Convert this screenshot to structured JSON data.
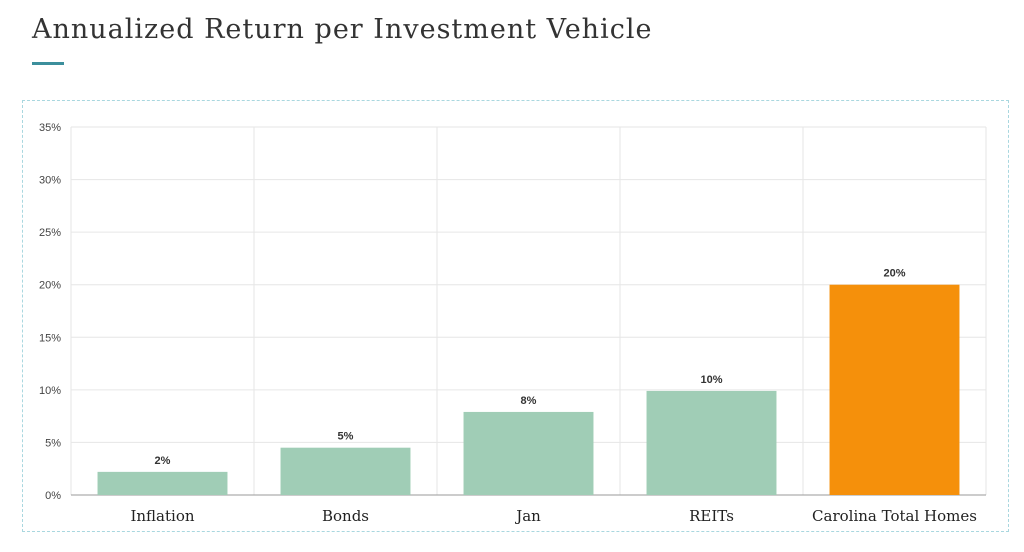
{
  "page": {
    "title": "Annualized Return per Investment Vehicle"
  },
  "colors": {
    "accent": "#3c8f9c",
    "bar_default": "#a0cdb6",
    "bar_highlight": "#f5900b",
    "grid": "#e6e6e6",
    "axis": "#999999"
  },
  "chart_data": {
    "type": "bar",
    "title": "",
    "xlabel": "",
    "ylabel": "",
    "categories": [
      "Inflation",
      "Bonds",
      "Jan",
      "REITs",
      "Carolina Total Homes"
    ],
    "values": [
      2.2,
      4.5,
      7.9,
      9.9,
      20
    ],
    "data_labels": [
      "2%",
      "5%",
      "8%",
      "10%",
      "20%"
    ],
    "highlight_index": 4,
    "ylim": [
      0,
      35
    ],
    "yticks": [
      0,
      5,
      10,
      15,
      20,
      25,
      30,
      35
    ],
    "ytick_labels": [
      "0%",
      "5%",
      "10%",
      "15%",
      "20%",
      "25%",
      "30%",
      "35%"
    ],
    "grid": true,
    "legend": "none"
  }
}
